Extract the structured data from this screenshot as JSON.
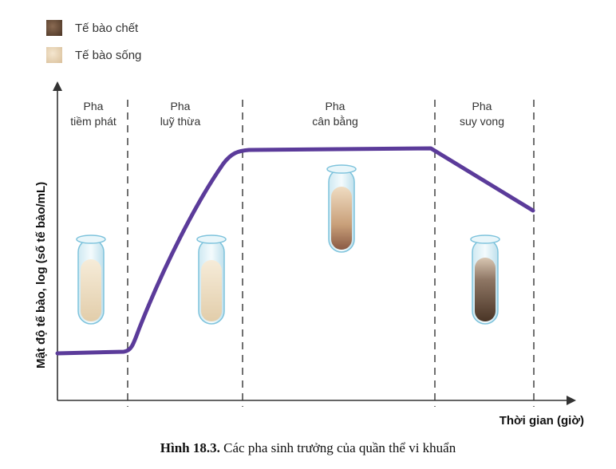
{
  "legend": {
    "dead_label": "Tế bào chết",
    "live_label": "Tế bào sống"
  },
  "phases": [
    {
      "line1": "Pha",
      "line2": "tiềm phát"
    },
    {
      "line1": "Pha",
      "line2": "luỹ thừa"
    },
    {
      "line1": "Pha",
      "line2": "cân bằng"
    },
    {
      "line1": "Pha",
      "line2": "suy vong"
    }
  ],
  "axes": {
    "ylabel": "Mật độ tế bào, log (số tế bào/mL)",
    "xlabel": "Thời gian (giờ)"
  },
  "caption": {
    "number": "Hình 18.3.",
    "text": " Các pha sinh trưởng của quần thể vi khuẩn"
  },
  "colors": {
    "curve": "#5b3b9a",
    "axis": "#333333"
  }
}
